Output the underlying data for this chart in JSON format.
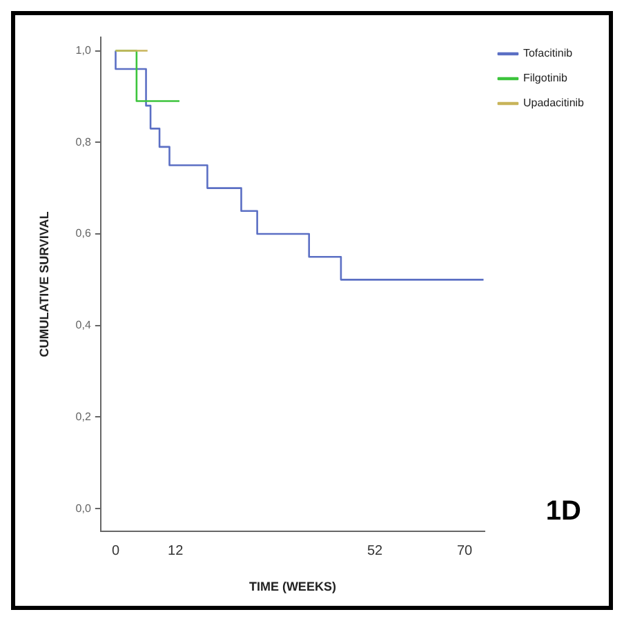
{
  "chart_data": {
    "type": "step",
    "xlabel": "TIME (WEEKS)",
    "ylabel": "CUMULATIVE SURVIVAL",
    "annotations": [
      "1D"
    ],
    "xlim": [
      -3,
      74
    ],
    "xticks": [
      0,
      12,
      52,
      70
    ],
    "ylim": [
      -0.05,
      1.03
    ],
    "yticks": [
      {
        "value": 0,
        "label": "0,0"
      },
      {
        "value": 0.2,
        "label": "0,2"
      },
      {
        "value": 0.4,
        "label": "0,4"
      },
      {
        "value": 0.6,
        "label": "0,6"
      },
      {
        "value": 0.8,
        "label": "0,8"
      },
      {
        "value": 1,
        "label": "1,0"
      }
    ],
    "grid": false,
    "legend": "top right",
    "marker": "none",
    "line_style": "solid",
    "series": [
      {
        "name": "Tofacitinib",
        "color": "#5b6fc4",
        "x": [
          0,
          0,
          6.1,
          7,
          8.8,
          10.8,
          11.8,
          18.4,
          25.2,
          28.4,
          38.8,
          45.2,
          53.4,
          64.1,
          66.9,
          71.6,
          72.9,
          73.8
        ],
        "values": [
          1,
          0.96,
          0.88,
          0.83,
          0.79,
          0.75,
          0.75,
          0.7,
          0.65,
          0.6,
          0.55,
          0.5,
          0.5,
          0.5,
          0.5,
          0.5,
          0.5,
          0.5
        ]
      },
      {
        "name": "Filgotinib",
        "color": "#3cc43c",
        "x": [
          0,
          4.2,
          4.2,
          4.8,
          5.6,
          6.8,
          7.8,
          12.8
        ],
        "values": [
          1,
          1,
          0.89,
          0.89,
          0.89,
          0.89,
          0.89,
          0.89
        ]
      },
      {
        "name": "Upadacitinib",
        "color": "#c8b45a",
        "x": [
          0,
          2.9,
          6.4
        ],
        "values": [
          1,
          1,
          1
        ]
      }
    ]
  }
}
